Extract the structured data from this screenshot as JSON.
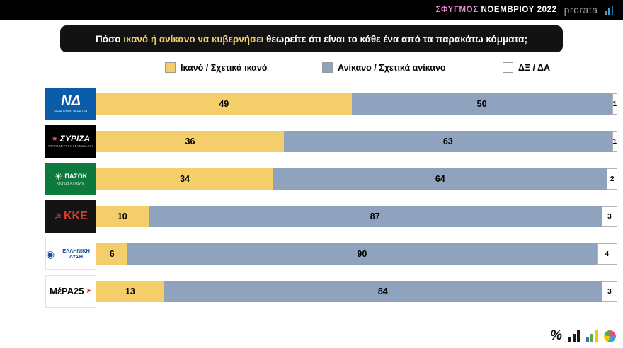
{
  "topbar": {
    "title_highlight": "ΣΦΥΓΜΟΣ",
    "title_rest": " ΝΟΕΜΒΡΙΟΥ 2022",
    "brand": "prorata"
  },
  "question": {
    "prefix": "Πόσο ",
    "highlight": "ικανό ή ανίκανο να κυβερνήσει",
    "suffix": " θεωρείτε ότι είναι το κάθε ένα από τα παρακάτω κόμματα;"
  },
  "legend": [
    {
      "label": "Ικανό / Σχετικά ικανό",
      "color": "#F4CE6A"
    },
    {
      "label": "Ανίκανο / Σχετικά ανίκανο",
      "color": "#8FA3BF"
    },
    {
      "label": "ΔΞ / ΔΑ",
      "color": "#FFFFFF"
    }
  ],
  "parties": [
    {
      "id": "nea-dimokratia",
      "bg": "#0A5BA9",
      "border": false,
      "icon": "",
      "icon_color": "",
      "icon_size": 0,
      "icon_pos": "before",
      "main": "ΝΔ",
      "main_color": "#FFFFFF",
      "main_size": 20,
      "main_italic": true,
      "sub": "ΝΕΑ ΔΗΜΟΚΡΑΤΙΑ",
      "sub_color": "#d8e6f5",
      "sub_size": 5
    },
    {
      "id": "syriza",
      "bg": "#000000",
      "border": false,
      "icon": "★",
      "icon_color": "#E5517E",
      "icon_size": 10,
      "icon_pos": "before",
      "main": "ΣΥΡΙΖΑ",
      "main_color": "#FFFFFF",
      "main_size": 12,
      "main_italic": true,
      "sub": "ΠΡΟΟΔΕΥΤΙΚΗ ΣΥΜΜΑΧΙΑ",
      "sub_color": "#bdbdbd",
      "sub_size": 4.5
    },
    {
      "id": "pasok",
      "bg": "#0C7A3D",
      "border": false,
      "icon": "☀",
      "icon_color": "#FFFFFF",
      "icon_size": 13,
      "icon_pos": "before",
      "main": "ΠΑΣΟΚ",
      "main_color": "#FFFFFF",
      "main_size": 9,
      "main_italic": false,
      "sub": "Κίνημα Αλλαγής",
      "sub_color": "#d7ecd9",
      "sub_size": 5
    },
    {
      "id": "kke",
      "bg": "#141414",
      "border": false,
      "icon": "☭",
      "icon_color": "#E03A2F",
      "icon_size": 12,
      "icon_pos": "before",
      "main": "ΚΚΕ",
      "main_color": "#E03A2F",
      "main_size": 16,
      "main_italic": false,
      "sub": "",
      "sub_color": "",
      "sub_size": 0
    },
    {
      "id": "elliniki-lysi",
      "bg": "#FFFFFF",
      "border": true,
      "icon": "◉",
      "icon_color": "#1B4F9C",
      "icon_size": 14,
      "icon_pos": "before",
      "main": "ΕΛΛΗΝΙΚΗ ΛΥΣΗ",
      "main_color": "#1B4F9C",
      "main_size": 7.5,
      "main_italic": false,
      "sub": "",
      "sub_color": "",
      "sub_size": 0
    },
    {
      "id": "mera25",
      "bg": "#FFFFFF",
      "border": true,
      "icon": "➤",
      "icon_color": "#D52B1E",
      "icon_size": 10,
      "icon_pos": "after",
      "main": "ΜέΡΑ25",
      "main_color": "#000000",
      "main_size": 13,
      "main_italic": false,
      "sub": "",
      "sub_color": "",
      "sub_size": 0
    }
  ],
  "chart_data": {
    "type": "bar",
    "orientation": "horizontal",
    "stacked": true,
    "title": "Πόσο ικανό ή ανίκανο να κυβερνήσει θεωρείτε ότι είναι το κάθε ένα από τα παρακάτω κόμματα;",
    "categories": [
      "ΝΔ",
      "ΣΥΡΙΖΑ",
      "ΠΑΣΟΚ",
      "ΚΚΕ",
      "ΕΛΛΗΝΙΚΗ ΛΥΣΗ",
      "ΜέΡΑ25"
    ],
    "series": [
      {
        "id": "capable",
        "name": "Ικανό / Σχετικά ικανό",
        "color": "#F4CE6A",
        "values": [
          49,
          36,
          34,
          10,
          6,
          13
        ]
      },
      {
        "id": "incapable",
        "name": "Ανίκανο / Σχετικά ανίκανο",
        "color": "#8FA3BF",
        "values": [
          50,
          63,
          64,
          87,
          90,
          84
        ]
      },
      {
        "id": "dk-da",
        "name": "ΔΞ / ΔΑ",
        "color": "#FFFFFF",
        "values": [
          1,
          1,
          2,
          3,
          4,
          3
        ]
      }
    ],
    "xlim": [
      0,
      100
    ],
    "value_labels": true,
    "legend_position": "top",
    "grid": false
  },
  "footer": {
    "percent_label": "%"
  }
}
